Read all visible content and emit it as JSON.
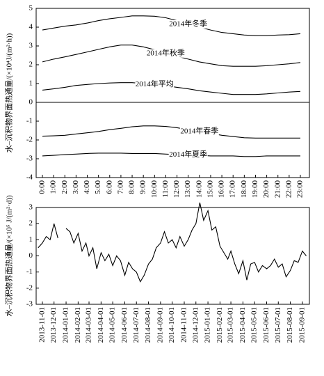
{
  "chart_data": [
    {
      "type": "line",
      "ylabel": "水–沉积物界面热通量/(×10⁴J/(m²·h))",
      "categories": [
        "0:00",
        "1:00",
        "2:00",
        "3:00",
        "4:00",
        "5:00",
        "6:00",
        "7:00",
        "8:00",
        "9:00",
        "10:00",
        "11:00",
        "12:00",
        "13:00",
        "14:00",
        "15:00",
        "16:00",
        "17:00",
        "18:00",
        "19:00",
        "20:00",
        "21:00",
        "22:00",
        "23:00"
      ],
      "series": [
        {
          "name": "2014年冬季",
          "color": "#000000",
          "values": [
            3.85,
            3.95,
            4.05,
            4.12,
            4.22,
            4.35,
            4.45,
            4.52,
            4.6,
            4.6,
            4.58,
            4.5,
            4.35,
            4.15,
            4.0,
            3.85,
            3.72,
            3.65,
            3.58,
            3.55,
            3.55,
            3.58,
            3.6,
            3.65
          ]
        },
        {
          "name": "2014年秋季",
          "color": "#000000",
          "values": [
            2.15,
            2.3,
            2.42,
            2.55,
            2.68,
            2.82,
            2.95,
            3.05,
            3.05,
            2.95,
            2.8,
            2.6,
            2.45,
            2.3,
            2.15,
            2.05,
            1.95,
            1.92,
            1.92,
            1.92,
            1.95,
            2.0,
            2.05,
            2.12
          ]
        },
        {
          "name": "2014年平均",
          "color": "#000000",
          "values": [
            0.65,
            0.72,
            0.8,
            0.9,
            0.95,
            1.0,
            1.03,
            1.05,
            1.05,
            1.0,
            0.95,
            0.88,
            0.8,
            0.72,
            0.62,
            0.55,
            0.48,
            0.42,
            0.42,
            0.42,
            0.45,
            0.5,
            0.55,
            0.58
          ]
        },
        {
          "name": "2014年春季",
          "color": "#000000",
          "values": [
            -1.8,
            -1.78,
            -1.75,
            -1.68,
            -1.62,
            -1.55,
            -1.45,
            -1.38,
            -1.3,
            -1.25,
            -1.25,
            -1.28,
            -1.35,
            -1.45,
            -1.55,
            -1.65,
            -1.75,
            -1.82,
            -1.88,
            -1.9,
            -1.9,
            -1.9,
            -1.9,
            -1.9
          ]
        },
        {
          "name": "2014年夏季",
          "color": "#000000",
          "values": [
            -2.85,
            -2.82,
            -2.78,
            -2.75,
            -2.72,
            -2.7,
            -2.7,
            -2.7,
            -2.72,
            -2.72,
            -2.72,
            -2.75,
            -2.78,
            -2.8,
            -2.82,
            -2.85,
            -2.85,
            -2.85,
            -2.88,
            -2.88,
            -2.85,
            -2.85,
            -2.85,
            -2.85
          ]
        }
      ],
      "ylim": [
        -4,
        5
      ],
      "yticks": [
        -4,
        -3,
        -2,
        -1,
        0,
        1,
        2,
        3,
        4,
        5
      ],
      "zero_line": true
    },
    {
      "type": "line",
      "ylabel": "水–沉积物界面热通量/(×10⁵ J/(m²·d))",
      "x": [
        "2013-10-21",
        "2013-11-01",
        "2013-11-11",
        "2013-11-21",
        "2013-12-01",
        "2013-12-11",
        "2013-12-21",
        "2014-01-01",
        "2014-01-11",
        "2014-01-21",
        "2014-02-01",
        "2014-02-11",
        "2014-02-21",
        "2014-03-01",
        "2014-03-11",
        "2014-03-21",
        "2014-04-01",
        "2014-04-11",
        "2014-04-21",
        "2014-05-01",
        "2014-05-11",
        "2014-05-21",
        "2014-06-01",
        "2014-06-11",
        "2014-06-21",
        "2014-07-01",
        "2014-07-11",
        "2014-07-21",
        "2014-08-01",
        "2014-08-11",
        "2014-08-21",
        "2014-09-01",
        "2014-09-11",
        "2014-09-21",
        "2014-10-01",
        "2014-10-11",
        "2014-10-21",
        "2014-11-01",
        "2014-11-11",
        "2014-11-21",
        "2014-12-01",
        "2014-12-11",
        "2014-12-21",
        "2015-01-01",
        "2015-01-11",
        "2015-01-21",
        "2015-02-01",
        "2015-02-11",
        "2015-02-21",
        "2015-03-01",
        "2015-03-11",
        "2015-03-21",
        "2015-04-01",
        "2015-04-11",
        "2015-04-21",
        "2015-05-01",
        "2015-05-11",
        "2015-05-21",
        "2015-06-01",
        "2015-06-11",
        "2015-06-21",
        "2015-07-01",
        "2015-07-11",
        "2015-07-21",
        "2015-08-01",
        "2015-08-11",
        "2015-08-21",
        "2015-09-01",
        "2015-09-11"
      ],
      "series": [
        {
          "name": null,
          "color": "#000000",
          "values": [
            0.5,
            0.8,
            1.2,
            1.0,
            2.0,
            1.1,
            null,
            1.7,
            1.5,
            0.8,
            1.4,
            0.3,
            0.8,
            0.0,
            0.5,
            -0.8,
            0.2,
            -0.3,
            0.1,
            -0.6,
            0.0,
            -0.3,
            -1.2,
            -0.4,
            -0.8,
            -1.0,
            -1.6,
            -1.2,
            -0.5,
            -0.2,
            0.5,
            0.8,
            1.5,
            0.8,
            1.0,
            0.5,
            1.2,
            0.6,
            1.0,
            1.6,
            2.0,
            3.3,
            2.2,
            2.8,
            1.6,
            1.8,
            0.6,
            0.2,
            -0.2,
            0.3,
            -0.5,
            -1.1,
            -0.3,
            -1.5,
            -0.5,
            -0.4,
            -1.0,
            -0.6,
            -0.8,
            -0.6,
            -0.2,
            -0.7,
            -0.5,
            -1.3,
            -0.9,
            -0.3,
            -0.4,
            0.3,
            0.0
          ]
        }
      ],
      "xlim": [
        "2013-10-16",
        "2015-09-19"
      ],
      "xticks": [
        "2013-11-01",
        "2013-12-01",
        "2014-01-01",
        "2014-02-01",
        "2014-03-01",
        "2014-04-01",
        "2014-05-01",
        "2014-06-01",
        "2014-07-01",
        "2014-08-01",
        "2014-09-01",
        "2014-10-01",
        "2014-11-01",
        "2014-12-01",
        "2015-01-01",
        "2015-02-01",
        "2015-03-01",
        "2015-04-01",
        "2015-05-01",
        "2015-06-01",
        "2015-07-01",
        "2015-08-01",
        "2015-09-01"
      ],
      "ylim": [
        -3,
        3
      ],
      "yticks": [
        -3,
        -2,
        -1,
        0,
        1,
        2,
        3
      ],
      "zero_line": false
    }
  ]
}
